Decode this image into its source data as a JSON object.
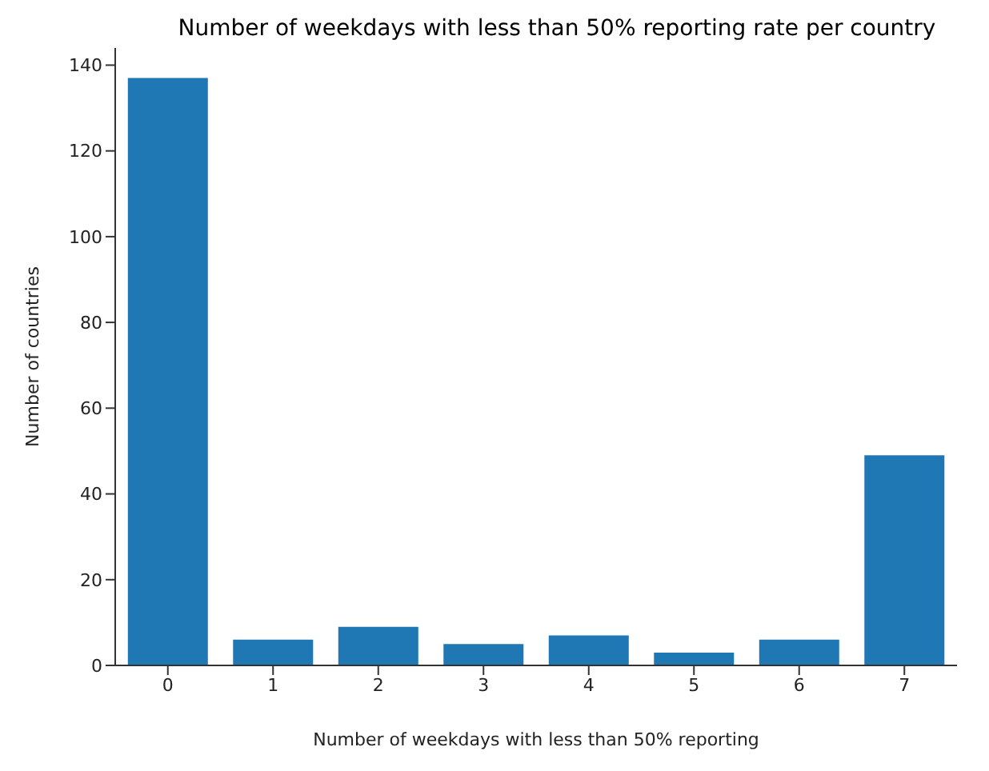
{
  "chart_data": {
    "type": "bar",
    "title": "Number of weekdays with less than 50% reporting rate per country",
    "xlabel": "Number of weekdays with less than 50% reporting",
    "ylabel": "Number of countries",
    "categories": [
      "0",
      "1",
      "2",
      "3",
      "4",
      "5",
      "6",
      "7"
    ],
    "values": [
      137,
      6,
      9,
      5,
      7,
      3,
      6,
      49
    ],
    "color": "#1f77b4",
    "ylim": [
      0,
      144
    ],
    "yticks": [
      0,
      20,
      40,
      60,
      80,
      100,
      120,
      140
    ],
    "grid": false
  }
}
